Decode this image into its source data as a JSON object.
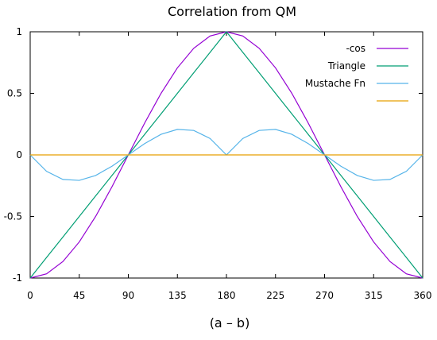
{
  "chart_data": {
    "type": "line",
    "title": "Correlation from QM",
    "xlabel": "(a – b)",
    "ylabel": "",
    "xlim": [
      0,
      360
    ],
    "ylim": [
      -1,
      1
    ],
    "xticks": [
      0,
      45,
      90,
      135,
      180,
      225,
      270,
      315,
      360
    ],
    "xtick_labels": [
      "0",
      "45",
      "90",
      "135",
      "180",
      "225",
      "270",
      "315",
      "360"
    ],
    "yticks": [
      1,
      0.5,
      0,
      -0.5,
      -1
    ],
    "ytick_labels": [
      "1",
      "0.5",
      "0",
      "-0.5",
      "-1"
    ],
    "grid": false,
    "legend_position": "top-right",
    "x": [
      0,
      15,
      30,
      45,
      60,
      75,
      90,
      105,
      120,
      135,
      150,
      165,
      180,
      195,
      210,
      225,
      240,
      255,
      270,
      285,
      300,
      315,
      330,
      345,
      360
    ],
    "series": [
      {
        "name": "-cos",
        "color": "#9400d3",
        "values": [
          -1,
          -0.966,
          -0.866,
          -0.707,
          -0.5,
          -0.259,
          0,
          0.259,
          0.5,
          0.707,
          0.866,
          0.966,
          1,
          0.966,
          0.866,
          0.707,
          0.5,
          0.259,
          0,
          -0.259,
          -0.5,
          -0.707,
          -0.866,
          -0.966,
          -1
        ]
      },
      {
        "name": "Triangle",
        "color": "#009e73",
        "values": [
          -1,
          -0.833,
          -0.667,
          -0.5,
          -0.333,
          -0.167,
          0,
          0.167,
          0.333,
          0.5,
          0.667,
          0.833,
          1,
          0.833,
          0.667,
          0.5,
          0.333,
          0.167,
          0,
          -0.167,
          -0.333,
          -0.5,
          -0.667,
          -0.833,
          -1
        ]
      },
      {
        "name": "Mustache Fn",
        "color": "#56b4e9",
        "values": [
          0,
          -0.133,
          -0.199,
          -0.207,
          -0.167,
          -0.092,
          0,
          0.092,
          0.167,
          0.207,
          0.199,
          0.133,
          0,
          0.133,
          0.199,
          0.207,
          0.167,
          0.092,
          0,
          -0.092,
          -0.167,
          -0.207,
          -0.199,
          -0.133,
          0
        ]
      },
      {
        "name": "",
        "color": "#e69f00",
        "values": [
          0,
          0,
          0,
          0,
          0,
          0,
          0,
          0,
          0,
          0,
          0,
          0,
          0,
          0,
          0,
          0,
          0,
          0,
          0,
          0,
          0,
          0,
          0,
          0,
          0
        ]
      }
    ]
  }
}
